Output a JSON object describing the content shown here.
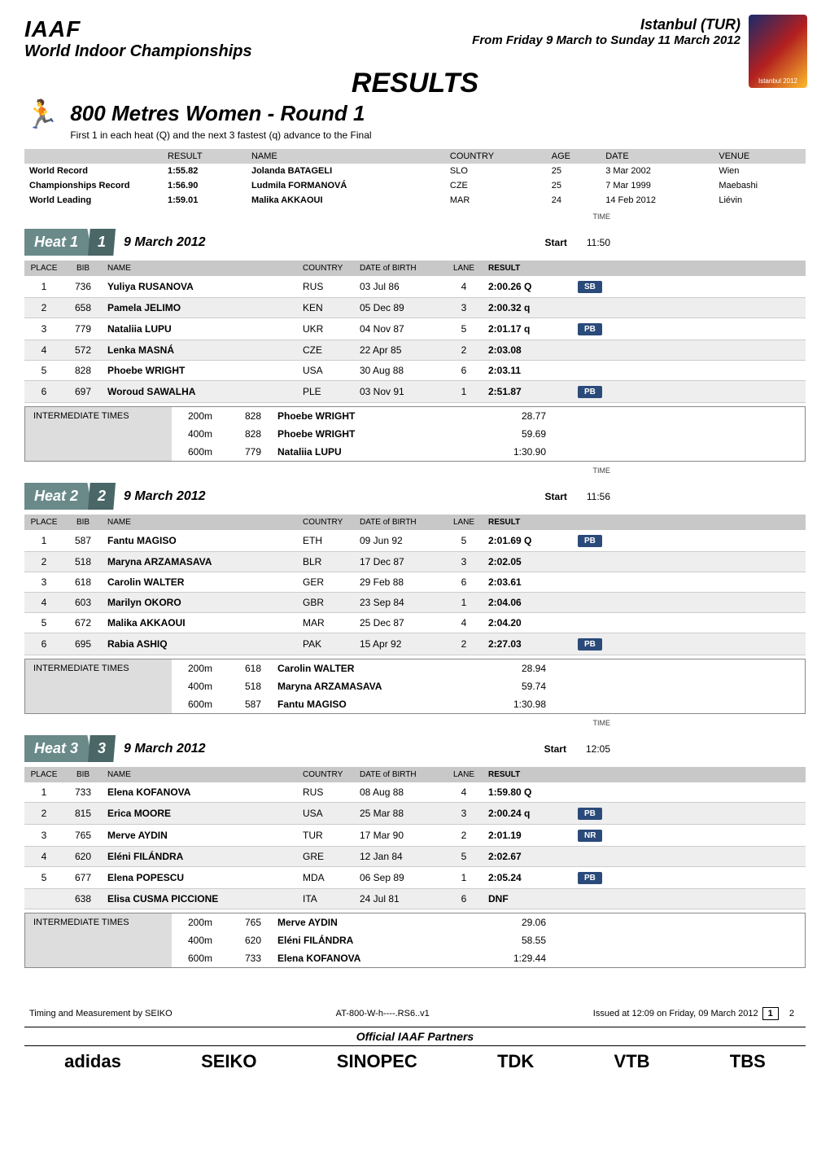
{
  "header": {
    "org": "IAAF",
    "championship": "World Indoor Championships",
    "city": "Istanbul (TUR)",
    "dates": "From Friday 9 March to Sunday 11 March 2012",
    "badge_text": "Istanbul 2012"
  },
  "titles": {
    "results": "RESULTS",
    "event": "800 Metres Women - Round 1",
    "event_sub": "First 1 in each heat (Q) and the next 3 fastest (q) advance to the Final"
  },
  "records": {
    "cols": {
      "result": "RESULT",
      "name": "NAME",
      "country": "COUNTRY",
      "age": "AGE",
      "date": "DATE",
      "venue": "VENUE"
    },
    "rows": [
      {
        "label": "World Record",
        "result": "1:55.82",
        "name": "Jolanda BATAGELI",
        "country": "SLO",
        "age": "25",
        "date": "3 Mar 2002",
        "venue": "Wien"
      },
      {
        "label": "Championships Record",
        "result": "1:56.90",
        "name": "Ludmila FORMANOVÁ",
        "country": "CZE",
        "age": "25",
        "date": "7 Mar 1999",
        "venue": "Maebashi"
      },
      {
        "label": "World Leading",
        "result": "1:59.01",
        "name": "Malika AKKAOUI",
        "country": "MAR",
        "age": "24",
        "date": "14 Feb 2012",
        "venue": "Liévin"
      }
    ]
  },
  "heat_labels": {
    "heat": "Heat",
    "start": "Start",
    "time_label": "TIME"
  },
  "results_cols": {
    "place": "PLACE",
    "bib": "BIB",
    "name": "NAME",
    "country": "COUNTRY",
    "dob": "DATE of BIRTH",
    "lane": "LANE",
    "result": "RESULT"
  },
  "intermediate_label": "INTERMEDIATE TIMES",
  "heats": [
    {
      "num": "1",
      "date": "9 March  2012",
      "start": "11:50",
      "rows": [
        {
          "place": "1",
          "bib": "736",
          "name": "Yuliya RUSANOVA",
          "country": "RUS",
          "dob": "03 Jul 86",
          "lane": "4",
          "result": "2:00.26",
          "q": "Q",
          "badge": "SB"
        },
        {
          "place": "2",
          "bib": "658",
          "name": "Pamela JELIMO",
          "country": "KEN",
          "dob": "05 Dec 89",
          "lane": "3",
          "result": "2:00.32",
          "q": "q",
          "badge": ""
        },
        {
          "place": "3",
          "bib": "779",
          "name": "Nataliia LUPU",
          "country": "UKR",
          "dob": "04 Nov 87",
          "lane": "5",
          "result": "2:01.17",
          "q": "q",
          "badge": "PB"
        },
        {
          "place": "4",
          "bib": "572",
          "name": "Lenka MASNÁ",
          "country": "CZE",
          "dob": "22 Apr 85",
          "lane": "2",
          "result": "2:03.08",
          "q": "",
          "badge": ""
        },
        {
          "place": "5",
          "bib": "828",
          "name": "Phoebe WRIGHT",
          "country": "USA",
          "dob": "30 Aug 88",
          "lane": "6",
          "result": "2:03.11",
          "q": "",
          "badge": ""
        },
        {
          "place": "6",
          "bib": "697",
          "name": "Woroud SAWALHA",
          "country": "PLE",
          "dob": "03 Nov 91",
          "lane": "1",
          "result": "2:51.87",
          "q": "",
          "badge": "PB"
        }
      ],
      "splits": [
        {
          "dist": "200m",
          "bib": "828",
          "name": "Phoebe WRIGHT",
          "time": "28.77"
        },
        {
          "dist": "400m",
          "bib": "828",
          "name": "Phoebe WRIGHT",
          "time": "59.69"
        },
        {
          "dist": "600m",
          "bib": "779",
          "name": "Nataliia LUPU",
          "time": "1:30.90"
        }
      ]
    },
    {
      "num": "2",
      "date": "9 March  2012",
      "start": "11:56",
      "rows": [
        {
          "place": "1",
          "bib": "587",
          "name": "Fantu MAGISO",
          "country": "ETH",
          "dob": "09 Jun 92",
          "lane": "5",
          "result": "2:01.69",
          "q": "Q",
          "badge": "PB"
        },
        {
          "place": "2",
          "bib": "518",
          "name": "Maryna ARZAMASAVA",
          "country": "BLR",
          "dob": "17 Dec 87",
          "lane": "3",
          "result": "2:02.05",
          "q": "",
          "badge": ""
        },
        {
          "place": "3",
          "bib": "618",
          "name": "Carolin WALTER",
          "country": "GER",
          "dob": "29 Feb 88",
          "lane": "6",
          "result": "2:03.61",
          "q": "",
          "badge": ""
        },
        {
          "place": "4",
          "bib": "603",
          "name": "Marilyn OKORO",
          "country": "GBR",
          "dob": "23 Sep 84",
          "lane": "1",
          "result": "2:04.06",
          "q": "",
          "badge": ""
        },
        {
          "place": "5",
          "bib": "672",
          "name": "Malika AKKAOUI",
          "country": "MAR",
          "dob": "25 Dec 87",
          "lane": "4",
          "result": "2:04.20",
          "q": "",
          "badge": ""
        },
        {
          "place": "6",
          "bib": "695",
          "name": "Rabia ASHIQ",
          "country": "PAK",
          "dob": "15 Apr 92",
          "lane": "2",
          "result": "2:27.03",
          "q": "",
          "badge": "PB"
        }
      ],
      "splits": [
        {
          "dist": "200m",
          "bib": "618",
          "name": "Carolin WALTER",
          "time": "28.94"
        },
        {
          "dist": "400m",
          "bib": "518",
          "name": "Maryna ARZAMASAVA",
          "time": "59.74"
        },
        {
          "dist": "600m",
          "bib": "587",
          "name": "Fantu MAGISO",
          "time": "1:30.98"
        }
      ]
    },
    {
      "num": "3",
      "date": "9 March  2012",
      "start": "12:05",
      "rows": [
        {
          "place": "1",
          "bib": "733",
          "name": "Elena KOFANOVA",
          "country": "RUS",
          "dob": "08 Aug 88",
          "lane": "4",
          "result": "1:59.80",
          "q": "Q",
          "badge": ""
        },
        {
          "place": "2",
          "bib": "815",
          "name": "Erica MOORE",
          "country": "USA",
          "dob": "25 Mar 88",
          "lane": "3",
          "result": "2:00.24",
          "q": "q",
          "badge": "PB"
        },
        {
          "place": "3",
          "bib": "765",
          "name": "Merve AYDIN",
          "country": "TUR",
          "dob": "17 Mar 90",
          "lane": "2",
          "result": "2:01.19",
          "q": "",
          "badge": "NR"
        },
        {
          "place": "4",
          "bib": "620",
          "name": "Eléni FILÁNDRA",
          "country": "GRE",
          "dob": "12 Jan 84",
          "lane": "5",
          "result": "2:02.67",
          "q": "",
          "badge": ""
        },
        {
          "place": "5",
          "bib": "677",
          "name": "Elena POPESCU",
          "country": "MDA",
          "dob": "06 Sep 89",
          "lane": "1",
          "result": "2:05.24",
          "q": "",
          "badge": "PB"
        },
        {
          "place": "",
          "bib": "638",
          "name": "Elisa CUSMA PICCIONE",
          "country": "ITA",
          "dob": "24 Jul 81",
          "lane": "6",
          "result": "DNF",
          "q": "",
          "badge": ""
        }
      ],
      "splits": [
        {
          "dist": "200m",
          "bib": "765",
          "name": "Merve AYDIN",
          "time": "29.06"
        },
        {
          "dist": "400m",
          "bib": "620",
          "name": "Eléni FILÁNDRA",
          "time": "58.55"
        },
        {
          "dist": "600m",
          "bib": "733",
          "name": "Elena KOFANOVA",
          "time": "1:29.44"
        }
      ]
    }
  ],
  "footer": {
    "left": "Timing and Measurement by SEIKO",
    "mid": "AT-800-W-h----.RS6..v1",
    "right": "Issued at 12:09 on Friday, 09 March 2012",
    "page_cur": "1",
    "page_tot": "2",
    "partners_label": "Official IAAF Partners",
    "partners": [
      "adidas",
      "SEIKO",
      "SINOPEC",
      "TDK",
      "VTB",
      "TBS"
    ]
  }
}
